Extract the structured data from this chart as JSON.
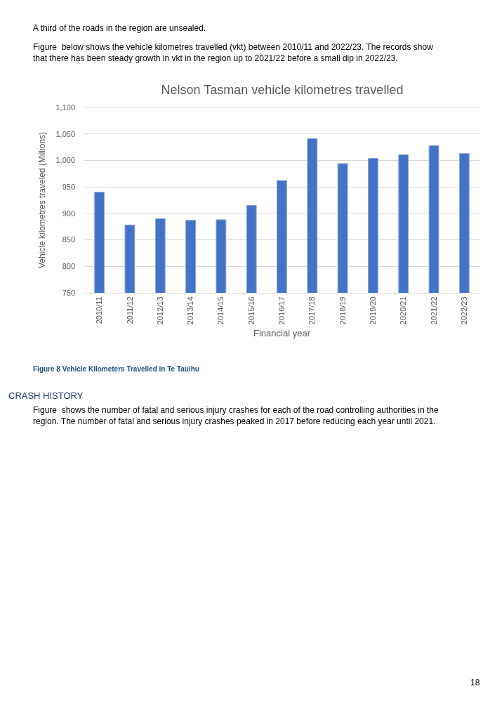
{
  "chart_data": {
    "type": "bar",
    "title": "Nelson Tasman vehicle kilometres travelled",
    "xlabel": "Financial year",
    "ylabel": "Vehicle kilometres traveled (Millions)",
    "categories": [
      "2010/11",
      "2011/12",
      "2012/13",
      "2013/14",
      "2014/15",
      "2015/16",
      "2016/17",
      "2017/18",
      "2018/19",
      "2019/20",
      "2020/21",
      "2021/22",
      "2022/23"
    ],
    "values": [
      940,
      878,
      890,
      887,
      888,
      915,
      962,
      1041,
      994,
      1004,
      1011,
      1028,
      1013
    ],
    "color": "#4472c4",
    "ylim": [
      750,
      1100
    ],
    "yticks": [
      750,
      800,
      850,
      900,
      950,
      {
        "value": 1000,
        "label": "1,000"
      },
      {
        "value": 1050,
        "label": "1,050"
      },
      {
        "value": 1100,
        "label": "1,100"
      }
    ],
    "grid": "y",
    "annotations": [
      "A third of the roads in the region are unsealed.",
      "Figure  below shows the vehicle kilometres travelled (vkt) between 2010/11 and 2022/23. The records show\nthat there has been steady growth in vkt in the region up to 2021/22 before a small dip in 2022/23.",
      "Figure 8 Vehicle Kilometers Travelled in Te Tauihu",
      "CRASH HISTORY",
      "Figure  shows the number of fatal and serious injury crashes for each of the road controlling authorities in the\nregion. The number of fatal and serious injury crashes peaked in 2017 before reducing each year until 2021.",
      "18"
    ]
  }
}
